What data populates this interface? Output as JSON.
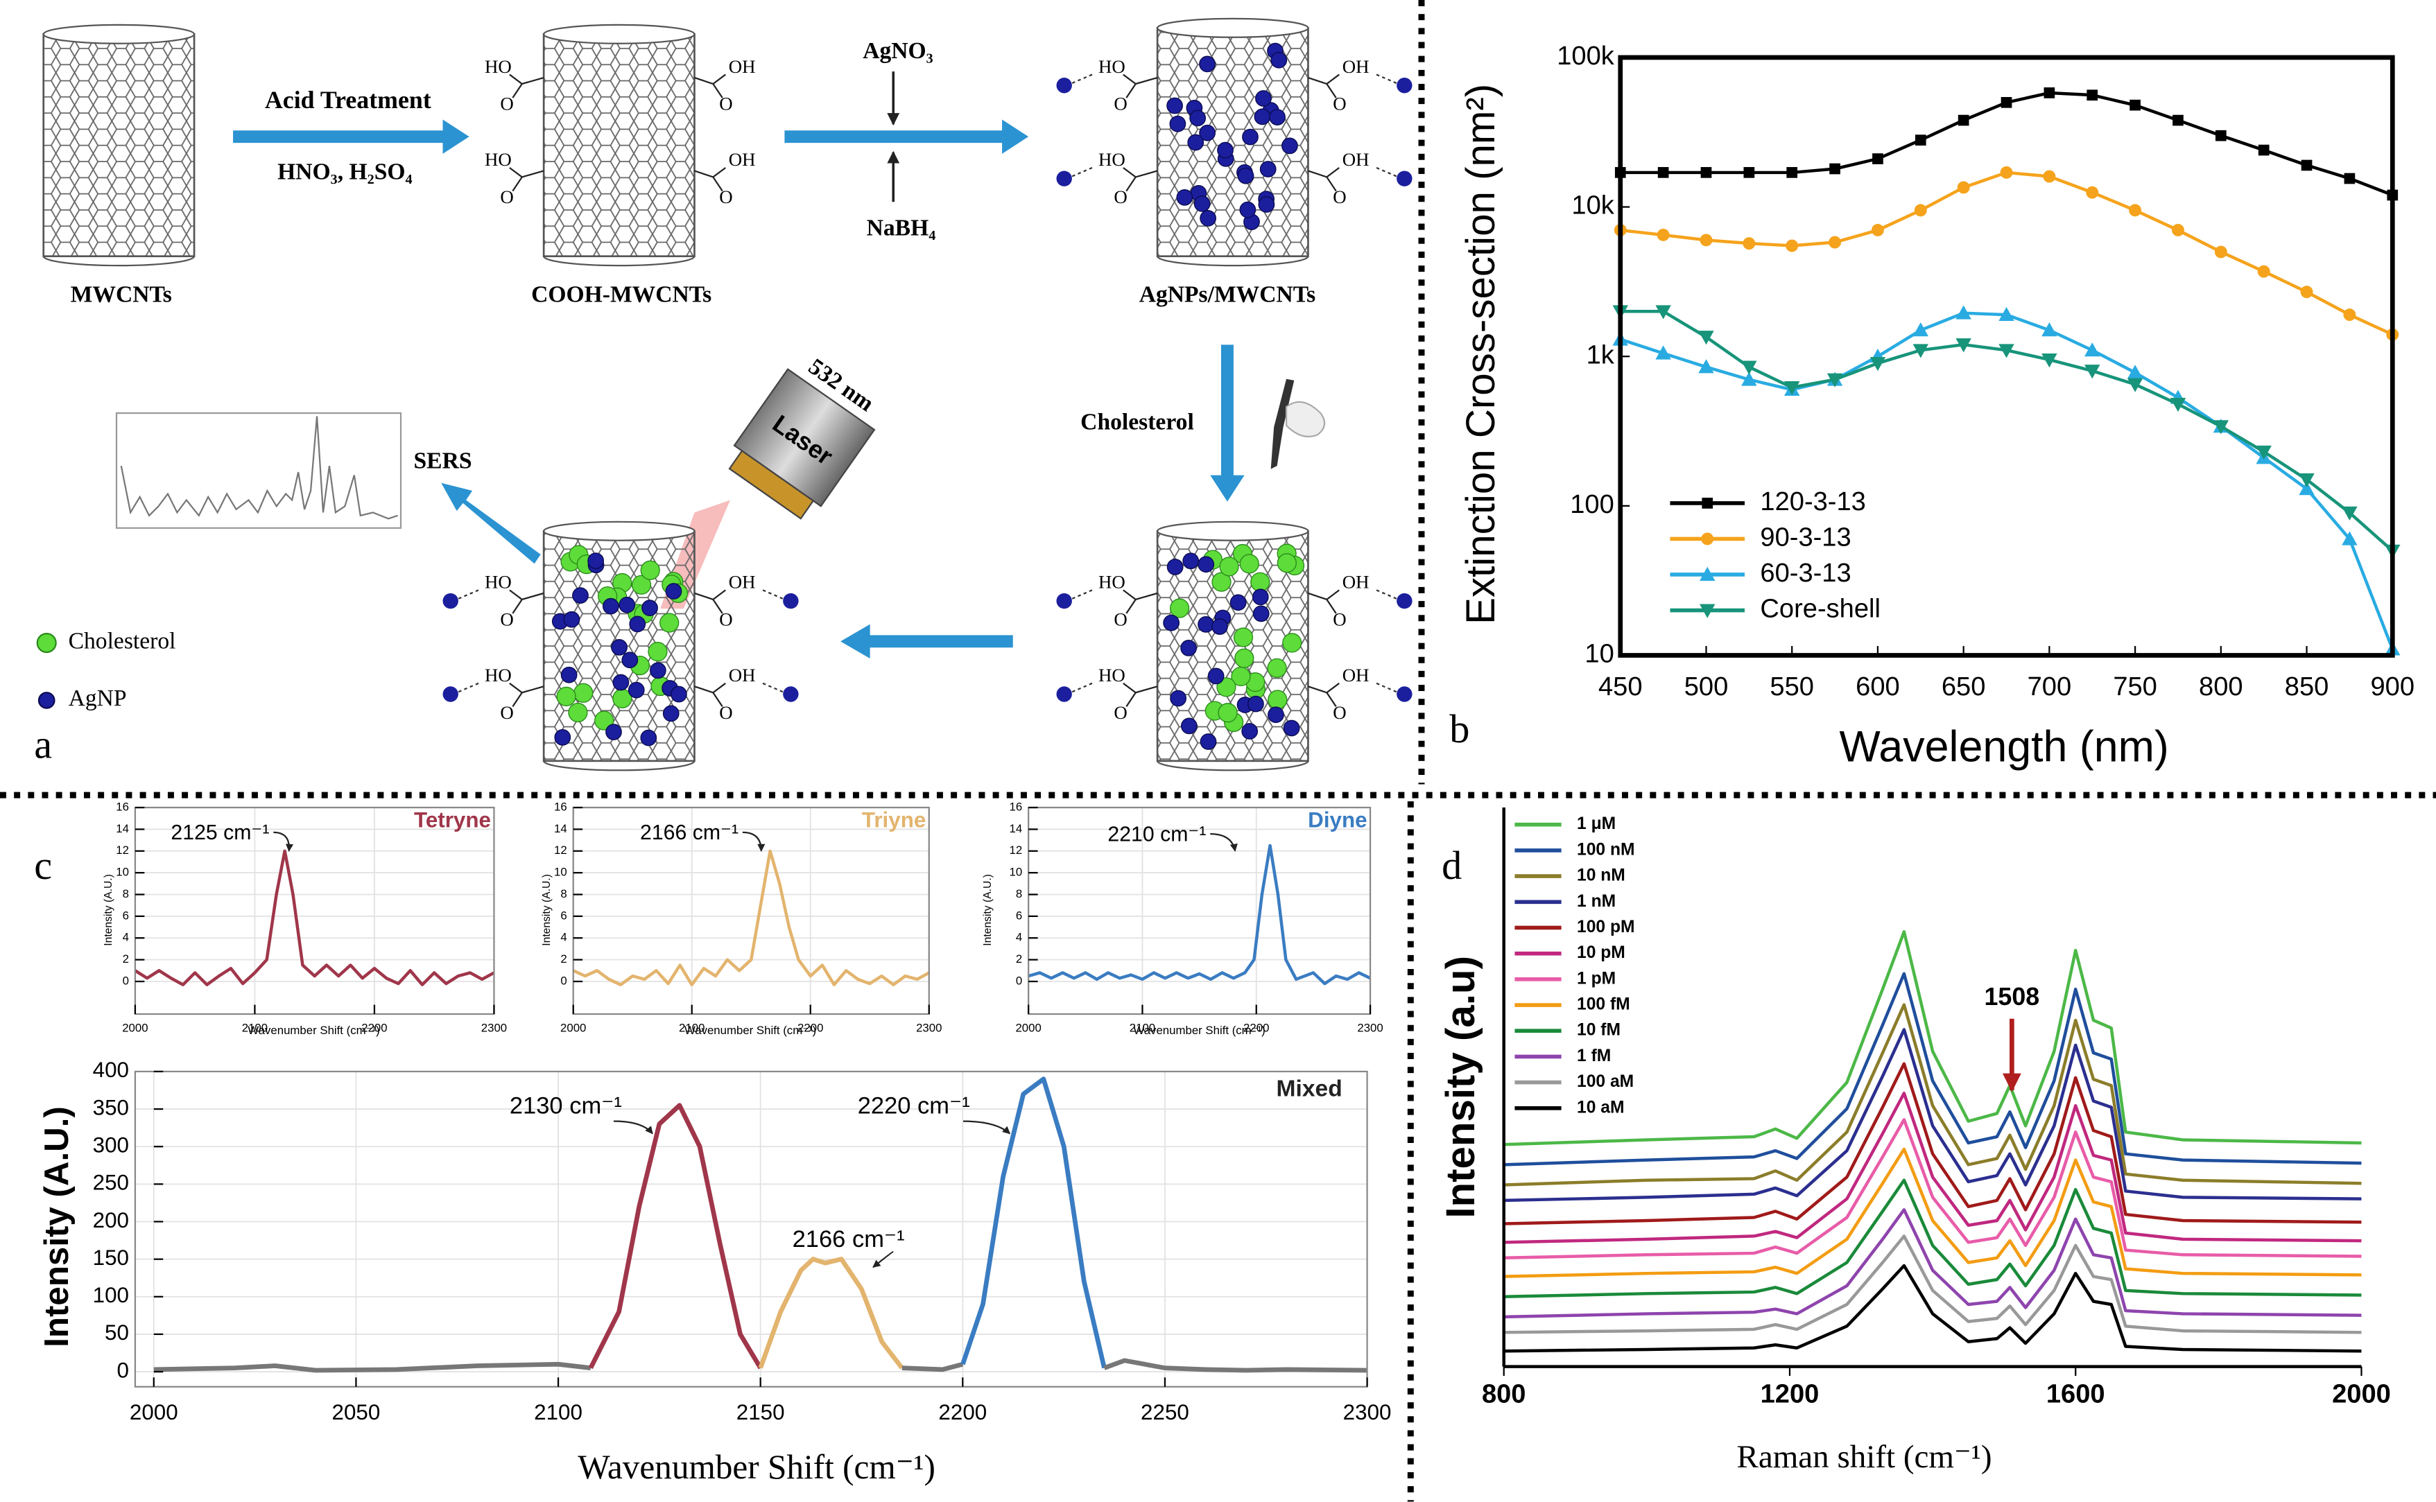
{
  "panel_a": {
    "label": "a",
    "steps": {
      "acid_treatment": "Acid Treatment",
      "acids": "HNO₃, H₂SO₄",
      "agno3": "AgNO₃",
      "nabh4": "NaBH₄",
      "cholesterol": "Cholesterol",
      "sers": "SERS",
      "wavelength": "532 nm",
      "laser": "Laser"
    },
    "products": [
      "MWCNTs",
      "COOH-MWCNTs",
      "AgNPs/MWCNTs"
    ],
    "groups": {
      "left": "HO",
      "right": "OH",
      "oxygen": "O"
    },
    "legend": [
      "Cholesterol",
      "AgNP"
    ]
  },
  "panel_labels": [
    "b",
    "c",
    "d"
  ],
  "chart_data": [
    {
      "type": "line",
      "ylabel": "Extinction Cross-section (nm²)",
      "xlabel": "Wavelength (nm)",
      "x": [
        450,
        475,
        500,
        525,
        550,
        575,
        600,
        625,
        650,
        675,
        700,
        725,
        750,
        775,
        800,
        825,
        850,
        875,
        900
      ],
      "xlim": [
        450,
        900
      ],
      "xticks": [
        450,
        500,
        550,
        600,
        650,
        700,
        750,
        800,
        850,
        900
      ],
      "ylim": [
        10,
        100000
      ],
      "yscale": "log",
      "yticks": [
        10,
        100,
        {
          "value": 1000,
          "label": "1k"
        },
        {
          "value": 10000,
          "label": "10k"
        },
        {
          "value": 100000,
          "label": "100k"
        }
      ],
      "legend": "lower left",
      "series": [
        {
          "name": "120-3-13",
          "color": "#000000",
          "marker": "square",
          "values": [
            17000,
            17000,
            17000,
            17000,
            17000,
            18000,
            21000,
            28000,
            38000,
            50000,
            58000,
            56000,
            48000,
            38000,
            30000,
            24000,
            19000,
            15500,
            12000
          ]
        },
        {
          "name": "90-3-13",
          "color": "#f5a31c",
          "marker": "circle",
          "values": [
            7000,
            6500,
            6000,
            5700,
            5500,
            5800,
            7000,
            9500,
            13500,
            17000,
            16000,
            12500,
            9500,
            7000,
            5000,
            3700,
            2700,
            1900,
            1400
          ]
        },
        {
          "name": "60-3-13",
          "color": "#29abe2",
          "marker": "triangle-up",
          "values": [
            1300,
            1050,
            850,
            700,
            600,
            700,
            1000,
            1500,
            1950,
            1900,
            1500,
            1100,
            780,
            530,
            340,
            210,
            130,
            60,
            11
          ]
        },
        {
          "name": "Core-shell",
          "color": "#17947a",
          "marker": "triangle-down",
          "values": [
            2000,
            2000,
            1350,
            850,
            620,
            700,
            900,
            1100,
            1200,
            1100,
            950,
            800,
            650,
            480,
            340,
            230,
            150,
            90,
            50
          ]
        }
      ]
    },
    {
      "type": "line",
      "title": "Tetryne",
      "annotations": [
        "2125 cm⁻¹"
      ],
      "ylabel": "Intensity (A.U.)",
      "xlabel": "Wavenumber Shift (cm⁻¹)",
      "xlim": [
        2000,
        2300
      ],
      "xticks": [
        2000,
        2100,
        2200,
        2300
      ],
      "ylim": [
        -3,
        16
      ],
      "yticks": [
        0,
        2,
        4,
        6,
        8,
        10,
        12,
        14,
        16
      ],
      "grid": true,
      "series": [
        {
          "color": "#a0364a",
          "x": [
            2000,
            2010,
            2020,
            2030,
            2040,
            2050,
            2060,
            2070,
            2080,
            2090,
            2100,
            2110,
            2118,
            2125,
            2132,
            2140,
            2150,
            2160,
            2170,
            2180,
            2190,
            2200,
            2210,
            2220,
            2230,
            2240,
            2250,
            2260,
            2270,
            2280,
            2290,
            2300
          ],
          "values": [
            1,
            0.3,
            1,
            0.3,
            -0.3,
            0.8,
            -0.3,
            0.5,
            1.2,
            -0.2,
            0.8,
            2,
            8,
            12,
            8,
            1.5,
            0.5,
            1.5,
            0.5,
            1.5,
            0.3,
            1.2,
            0.3,
            -0.2,
            1,
            -0.3,
            0.8,
            -0.2,
            0.5,
            0.8,
            0.2,
            0.8
          ]
        }
      ]
    },
    {
      "type": "line",
      "title": "Triyne",
      "annotations": [
        "2166 cm⁻¹"
      ],
      "ylabel": "Intensity (A.U.)",
      "xlabel": "Wavenumber Shift (cm⁻¹)",
      "xlim": [
        2000,
        2300
      ],
      "xticks": [
        2000,
        2100,
        2200,
        2300
      ],
      "ylim": [
        -3,
        16
      ],
      "yticks": [
        0,
        2,
        4,
        6,
        8,
        10,
        12,
        14,
        16
      ],
      "grid": true,
      "series": [
        {
          "color": "#e3b46e",
          "x": [
            2000,
            2010,
            2020,
            2030,
            2040,
            2050,
            2060,
            2070,
            2080,
            2090,
            2100,
            2110,
            2120,
            2130,
            2140,
            2150,
            2158,
            2166,
            2174,
            2182,
            2190,
            2200,
            2210,
            2220,
            2230,
            2240,
            2250,
            2260,
            2270,
            2280,
            2290,
            2300
          ],
          "values": [
            1,
            0.5,
            1,
            0.2,
            -0.3,
            0.5,
            0.2,
            1,
            -0.2,
            1.5,
            -0.3,
            1.2,
            0.5,
            2,
            1,
            2,
            7,
            12,
            9,
            5,
            2,
            0.5,
            1.5,
            -0.3,
            1,
            0.2,
            -0.2,
            0.5,
            -0.3,
            0.5,
            0.2,
            0.8
          ]
        }
      ]
    },
    {
      "type": "line",
      "title": "Diyne",
      "annotations": [
        "2210 cm⁻¹"
      ],
      "ylabel": "Intensity (A.U.)",
      "xlabel": "Wavenumber Shift (cm⁻¹)",
      "xlim": [
        2000,
        2300
      ],
      "xticks": [
        2000,
        2100,
        2200,
        2300
      ],
      "ylim": [
        -3,
        16
      ],
      "yticks": [
        0,
        2,
        4,
        6,
        8,
        10,
        12,
        14,
        16
      ],
      "grid": true,
      "series": [
        {
          "color": "#3a7cc2",
          "x": [
            2000,
            2010,
            2020,
            2030,
            2040,
            2050,
            2060,
            2070,
            2080,
            2090,
            2100,
            2110,
            2120,
            2130,
            2140,
            2150,
            2160,
            2170,
            2180,
            2190,
            2198,
            2205,
            2212,
            2219,
            2226,
            2235,
            2250,
            2260,
            2270,
            2280,
            2290,
            2300
          ],
          "values": [
            0.5,
            0.8,
            0.3,
            0.8,
            0.3,
            0.8,
            0.2,
            0.8,
            0.3,
            0.6,
            0.2,
            0.8,
            0.3,
            0.8,
            0.3,
            0.7,
            0.2,
            0.8,
            0.3,
            0.8,
            2,
            8,
            12.5,
            8,
            2,
            0.2,
            0.8,
            -0.2,
            0.5,
            0.2,
            0.8,
            0.3
          ]
        }
      ]
    },
    {
      "type": "line",
      "title": "Mixed",
      "annotations": [
        "2130 cm⁻¹",
        "2166 cm⁻¹",
        "2220 cm⁻¹"
      ],
      "ylabel": "Intensity (A.U.)",
      "xlabel": "Wavenumber Shift (cm⁻¹)",
      "xlim": [
        2000,
        2300
      ],
      "xticks": [
        2000,
        2050,
        2100,
        2150,
        2200,
        2250,
        2300
      ],
      "ylim": [
        -20,
        400
      ],
      "yticks": [
        0,
        50,
        100,
        150,
        200,
        250,
        300,
        350,
        400
      ],
      "grid": true,
      "series": [
        {
          "color": "#777777",
          "x": [
            2000,
            2020,
            2030,
            2040,
            2060,
            2080,
            2100,
            2108
          ],
          "values": [
            3,
            5,
            8,
            2,
            3,
            8,
            10,
            5
          ]
        },
        {
          "color": "#a0364a",
          "x": [
            2108,
            2115,
            2120,
            2125,
            2130,
            2135,
            2140,
            2145,
            2150
          ],
          "values": [
            5,
            80,
            220,
            330,
            355,
            300,
            170,
            50,
            5
          ]
        },
        {
          "color": "#e3b46e",
          "x": [
            2150,
            2155,
            2160,
            2163,
            2166,
            2170,
            2175,
            2180,
            2185
          ],
          "values": [
            5,
            80,
            135,
            150,
            145,
            150,
            110,
            40,
            5
          ]
        },
        {
          "color": "#777777",
          "x": [
            2185,
            2195,
            2200
          ],
          "values": [
            5,
            3,
            10
          ]
        },
        {
          "color": "#3a7cc2",
          "x": [
            2200,
            2205,
            2210,
            2215,
            2220,
            2225,
            2230,
            2235
          ],
          "values": [
            10,
            90,
            260,
            370,
            390,
            300,
            120,
            5
          ]
        },
        {
          "color": "#777777",
          "x": [
            2235,
            2240,
            2250,
            2260,
            2270,
            2280,
            2300
          ],
          "values": [
            5,
            15,
            5,
            3,
            2,
            3,
            2
          ]
        }
      ]
    },
    {
      "type": "line",
      "ylabel": "Intensity (a.u)",
      "xlabel": "Raman shift (cm⁻¹)",
      "annotations": [
        "1508"
      ],
      "x": [
        800,
        1000,
        1150,
        1180,
        1210,
        1280,
        1330,
        1360,
        1400,
        1450,
        1490,
        1508,
        1530,
        1570,
        1600,
        1625,
        1650,
        1670,
        1750,
        2000
      ],
      "xlim": [
        800,
        2000
      ],
      "xticks": [
        800,
        1200,
        1600,
        2000
      ],
      "ylim": [
        0,
        360
      ],
      "legend": "upper left",
      "series": [
        {
          "name": "1 μM",
          "color": "#4cb847",
          "values": [
            143,
            146,
            148,
            153,
            147,
            183,
            243,
            280,
            203,
            158,
            163,
            181,
            155,
            203,
            268,
            223,
            218,
            151,
            146,
            144
          ]
        },
        {
          "name": "100 nM",
          "color": "#1f4e9c",
          "values": [
            130,
            133,
            135,
            139,
            134,
            166,
            220,
            253,
            184,
            144,
            148,
            164,
            141,
            184,
            243,
            202,
            198,
            137,
            133,
            131
          ]
        },
        {
          "name": "10 nM",
          "color": "#8b7d2a",
          "values": [
            117,
            120,
            121,
            126,
            120,
            151,
            202,
            233,
            168,
            130,
            134,
            149,
            127,
            168,
            223,
            185,
            181,
            124,
            120,
            118
          ]
        },
        {
          "name": "1 nM",
          "color": "#2b2f8f",
          "values": [
            107,
            109,
            111,
            115,
            110,
            139,
            187,
            217,
            155,
            119,
            123,
            137,
            117,
            155,
            207,
            171,
            167,
            113,
            109,
            108
          ]
        },
        {
          "name": "100 pM",
          "color": "#a01a1a",
          "values": [
            92,
            94,
            96,
            100,
            95,
            122,
            167,
            195,
            137,
            103,
            107,
            121,
            101,
            137,
            186,
            152,
            148,
            98,
            94,
            93
          ]
        },
        {
          "name": "10 pM",
          "color": "#c0287f",
          "values": [
            80,
            82,
            84,
            87,
            83,
            108,
            150,
            176,
            122,
            91,
            94,
            107,
            88,
            122,
            168,
            136,
            133,
            86,
            82,
            81
          ]
        },
        {
          "name": "1 pM",
          "color": "#e85ca8",
          "values": [
            70,
            72,
            73,
            77,
            73,
            96,
            135,
            159,
            109,
            80,
            83,
            95,
            78,
            109,
            151,
            122,
            119,
            75,
            72,
            71
          ]
        },
        {
          "name": "100 fM",
          "color": "#f39c12",
          "values": [
            58,
            60,
            61,
            64,
            60,
            82,
            118,
            140,
            94,
            67,
            70,
            81,
            65,
            94,
            133,
            106,
            103,
            63,
            60,
            59
          ]
        },
        {
          "name": "10 fM",
          "color": "#1a8a3a",
          "values": [
            45,
            47,
            48,
            51,
            47,
            67,
            100,
            120,
            78,
            53,
            56,
            66,
            52,
            78,
            114,
            89,
            86,
            49,
            47,
            46
          ]
        },
        {
          "name": "1 fM",
          "color": "#8e44ad",
          "values": [
            32,
            34,
            35,
            37,
            34,
            52,
            82,
            101,
            62,
            40,
            42,
            51,
            38,
            62,
            95,
            72,
            70,
            36,
            34,
            33
          ]
        },
        {
          "name": "100 aM",
          "color": "#999999",
          "values": [
            22,
            23,
            24,
            27,
            24,
            40,
            67,
            84,
            49,
            29,
            31,
            39,
            27,
            49,
            78,
            58,
            56,
            26,
            23,
            22
          ]
        },
        {
          "name": "10 aM",
          "color": "#000000",
          "values": [
            10,
            11,
            12,
            14,
            12,
            26,
            50,
            65,
            34,
            16,
            18,
            25,
            15,
            34,
            60,
            42,
            40,
            13,
            11,
            10
          ]
        }
      ]
    }
  ]
}
